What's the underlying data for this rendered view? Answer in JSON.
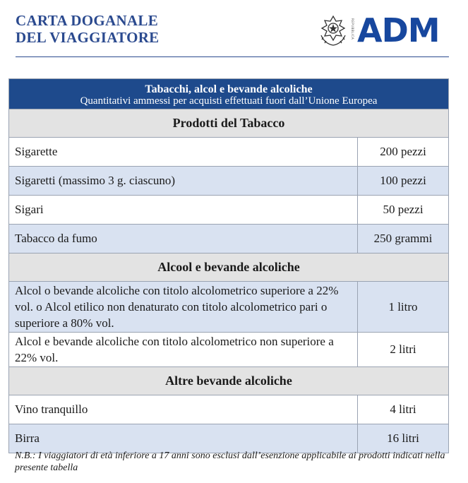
{
  "header": {
    "title_line1": "CARTA DOGANALE",
    "title_line2": "DEL VIAGGIATORE",
    "logo_text": "ADM",
    "emblem_text": "REPUBBLICA",
    "emblem_icon": "italian-republic-emblem",
    "brand_color": "#17479e"
  },
  "table": {
    "caption_title": "Tabacchi, alcol e bevande alcoliche",
    "caption_subtitle": "Quantitativi ammessi per acquisti effettuati fuori dall’Unione Europea",
    "sections": [
      {
        "heading": "Prodotti del Tabacco",
        "rows": [
          {
            "item": "Sigarette",
            "quantity": "200 pezzi"
          },
          {
            "item": "Sigaretti (massimo 3 g. ciascuno)",
            "quantity": "100 pezzi"
          },
          {
            "item": "Sigari",
            "quantity": "50 pezzi"
          },
          {
            "item": "Tabacco da fumo",
            "quantity": "250 grammi"
          }
        ]
      },
      {
        "heading": "Alcool e bevande alcoliche",
        "rows": [
          {
            "item": "Alcol o bevande alcoliche con titolo alcolometrico superiore a 22% vol. o Alcol etilico non denaturato con titolo alcolometrico pari o superiore a 80% vol.",
            "quantity": "1 litro"
          },
          {
            "item": "Alcol e bevande alcoliche con titolo alcolometrico non superiore a 22% vol.",
            "quantity": "2 litri"
          }
        ]
      },
      {
        "heading": "Altre bevande alcoliche",
        "rows": [
          {
            "item": "Vino tranquillo",
            "quantity": "4 litri"
          },
          {
            "item": "Birra",
            "quantity": "16 litri"
          }
        ]
      }
    ]
  },
  "note": {
    "prefix": "N.B.:",
    "text": " I viaggiatori di età inferiore a 17 anni sono esclusi dall’esenzione applicabile ai prodotti indicati nella presente tabella"
  }
}
